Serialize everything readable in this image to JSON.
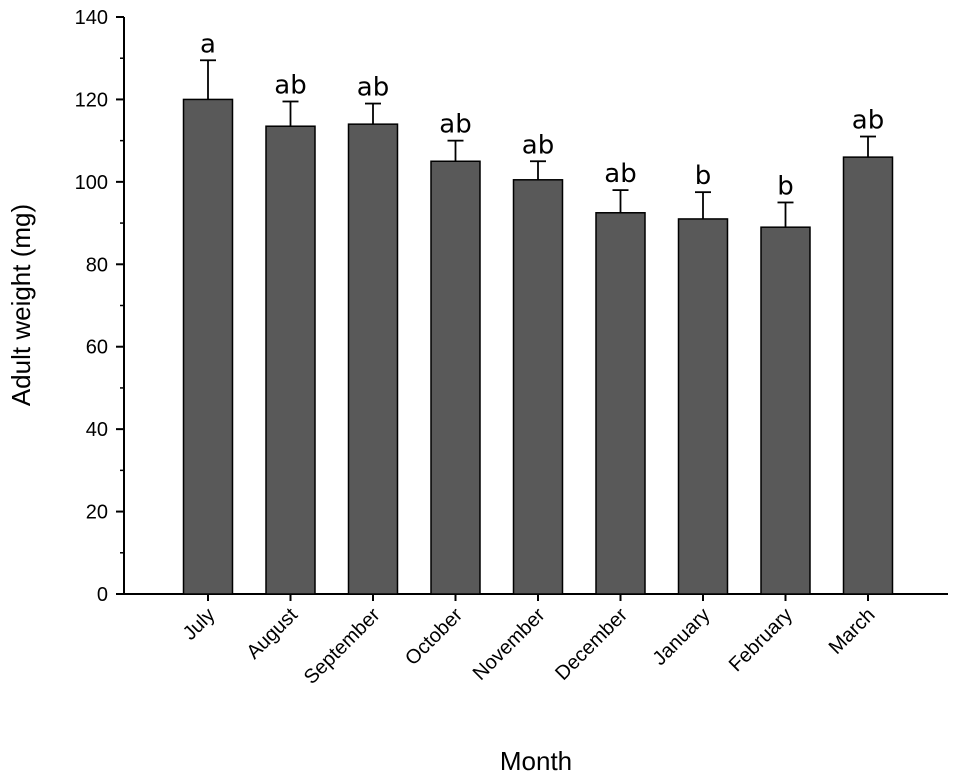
{
  "chart_data": {
    "type": "bar",
    "title": "",
    "xlabel": "Month",
    "ylabel": "Adult weight (mg)",
    "ylim": [
      0,
      140
    ],
    "yticks": [
      0,
      20,
      40,
      60,
      80,
      100,
      120,
      140
    ],
    "categories": [
      "July",
      "August",
      "September",
      "October",
      "November",
      "December",
      "January",
      "February",
      "March"
    ],
    "values": [
      120,
      113.5,
      114,
      105,
      100.5,
      92.5,
      91,
      89,
      106
    ],
    "errors": [
      9.5,
      6,
      5,
      5,
      4.5,
      5.5,
      6.5,
      6,
      5
    ],
    "significance_letters": [
      "a",
      "ab",
      "ab",
      "ab",
      "ab",
      "ab",
      "b",
      "b",
      "ab"
    ],
    "bar_color": "#595959",
    "grid": false,
    "legend": "none"
  }
}
